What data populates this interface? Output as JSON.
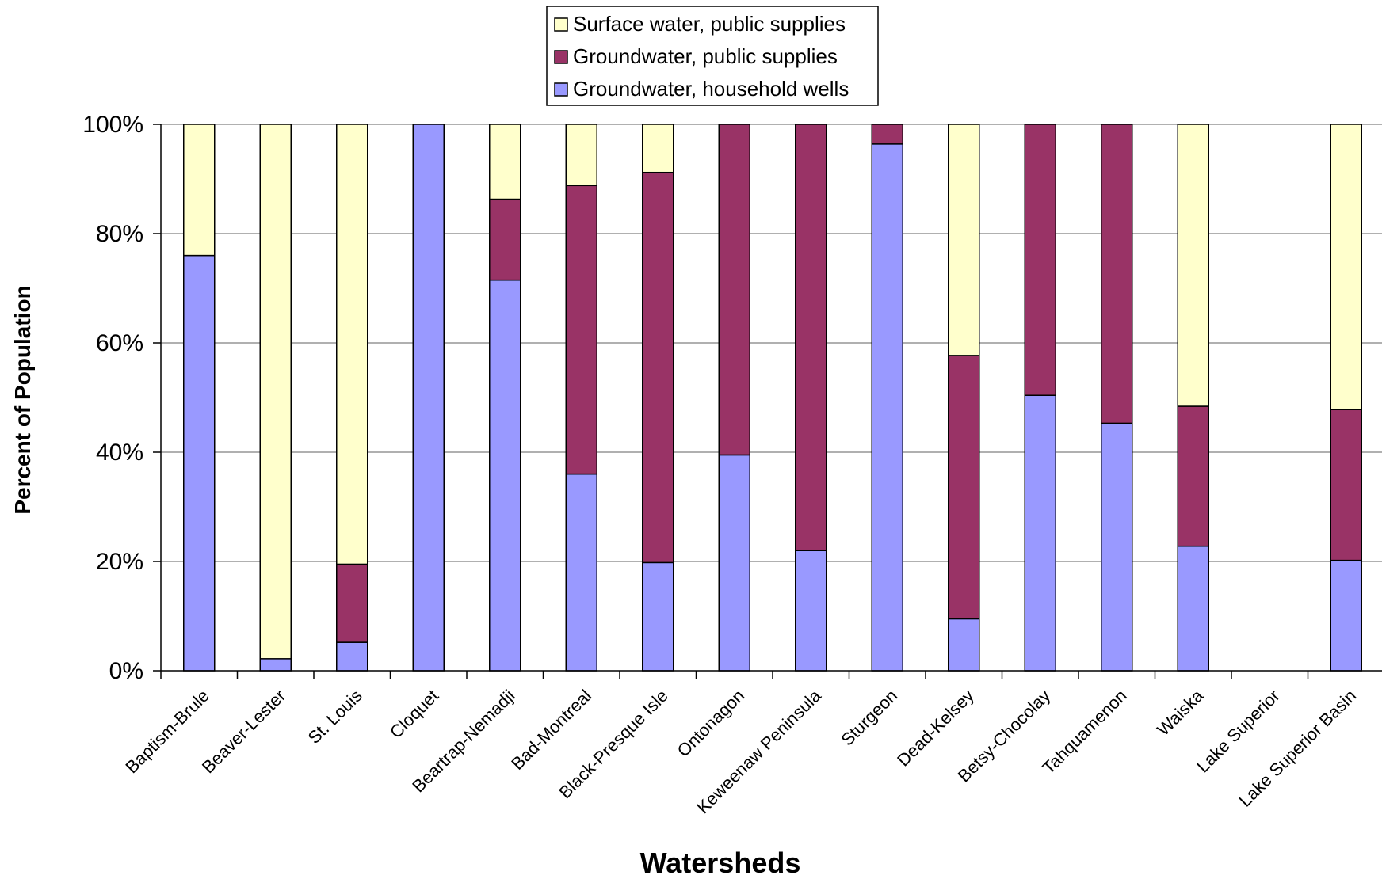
{
  "chart_data": {
    "type": "bar",
    "stacked": true,
    "title": "",
    "xlabel": "Watersheds",
    "ylabel": "Percent of Population",
    "ylim": [
      0,
      100
    ],
    "yticks": [
      "0%",
      "20%",
      "40%",
      "60%",
      "80%",
      "100%"
    ],
    "grid": true,
    "legend_position": "top-center",
    "categories": [
      "Baptism-Brule",
      "Beaver-Lester",
      "St. Louis",
      "Cloquet",
      "Beartrap-Nemadji",
      "Bad-Montreal",
      "Black-Presque Isle",
      "Ontonagon",
      "Keweenaw Peninsula",
      "Sturgeon",
      "Dead-Kelsey",
      "Betsy-Chocolay",
      "Tahquamenon",
      "Waiska",
      "Lake Superior",
      "Lake Superior Basin"
    ],
    "series": [
      {
        "name": "Groundwater, household wells",
        "color": "#9999ff",
        "values": [
          76,
          2.2,
          5.2,
          100,
          71.5,
          36,
          19.8,
          39.5,
          22,
          96.4,
          9.5,
          50.4,
          45.3,
          22.8,
          0,
          20.2
        ]
      },
      {
        "name": "Groundwater, public supplies",
        "color": "#993366",
        "values": [
          0,
          0,
          14.3,
          0,
          14.8,
          52.8,
          71.4,
          60.5,
          78,
          3.6,
          48.2,
          49.6,
          54.7,
          25.6,
          0,
          27.6
        ]
      },
      {
        "name": "Surface water, public supplies",
        "color": "#ffffcc",
        "values": [
          24,
          97.8,
          80.5,
          0,
          13.7,
          11.2,
          8.8,
          0,
          0,
          0,
          42.3,
          0,
          0,
          51.6,
          0,
          52.2
        ]
      }
    ],
    "legend_order": [
      "Surface water, public supplies",
      "Groundwater, public supplies",
      "Groundwater, household wells"
    ]
  }
}
